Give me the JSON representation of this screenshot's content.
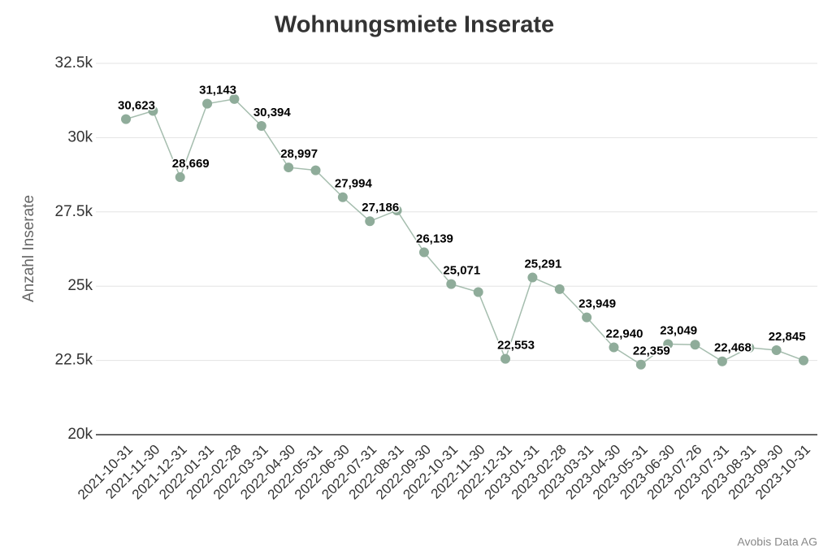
{
  "chart_data": {
    "type": "line",
    "title": "Wohnungsmiete Inserate",
    "y_label": "Anzahl Inserate",
    "source": "Avobis Data AG",
    "categories": [
      "2021-10-31",
      "2021-11-30",
      "2021-12-31",
      "2022-01-31",
      "2022-02-28",
      "2022-03-31",
      "2022-04-30",
      "2022-05-31",
      "2022-06-30",
      "2022-07-31",
      "2022-08-31",
      "2022-09-30",
      "2022-10-31",
      "2022-11-30",
      "2022-12-31",
      "2023-01-31",
      "2023-02-28",
      "2023-03-31",
      "2023-04-30",
      "2023-05-31",
      "2023-06-30",
      "2023-07-26",
      "2023-07-31",
      "2023-08-31",
      "2023-09-30",
      "2023-10-31"
    ],
    "series": [
      {
        "name": "Inserate",
        "color": "#8fac9a",
        "values": [
          30623,
          30900,
          28669,
          31143,
          31300,
          30394,
          28997,
          28900,
          27994,
          27186,
          27550,
          26139,
          25071,
          24800,
          22553,
          25291,
          24900,
          23949,
          22940,
          22359,
          23049,
          23030,
          22468,
          22930,
          22845,
          22500
        ],
        "value_labels": [
          "30,623",
          null,
          "28,669",
          "31,143",
          null,
          "30,394",
          "28,997",
          null,
          "27,994",
          "27,186",
          null,
          "26,139",
          "25,071",
          null,
          "22,553",
          "25,291",
          null,
          "23,949",
          "22,940",
          "22,359",
          "23,049",
          null,
          "22,468",
          null,
          "22,845",
          null
        ]
      }
    ],
    "ylim": [
      20000,
      32500
    ],
    "yticks": [
      {
        "value": 20000,
        "label": "20k"
      },
      {
        "value": 22500,
        "label": "22.5k"
      },
      {
        "value": 25000,
        "label": "25k"
      },
      {
        "value": 27500,
        "label": "27.5k"
      },
      {
        "value": 30000,
        "label": "30k"
      },
      {
        "value": 32500,
        "label": "32.5k"
      }
    ],
    "grid": true
  }
}
